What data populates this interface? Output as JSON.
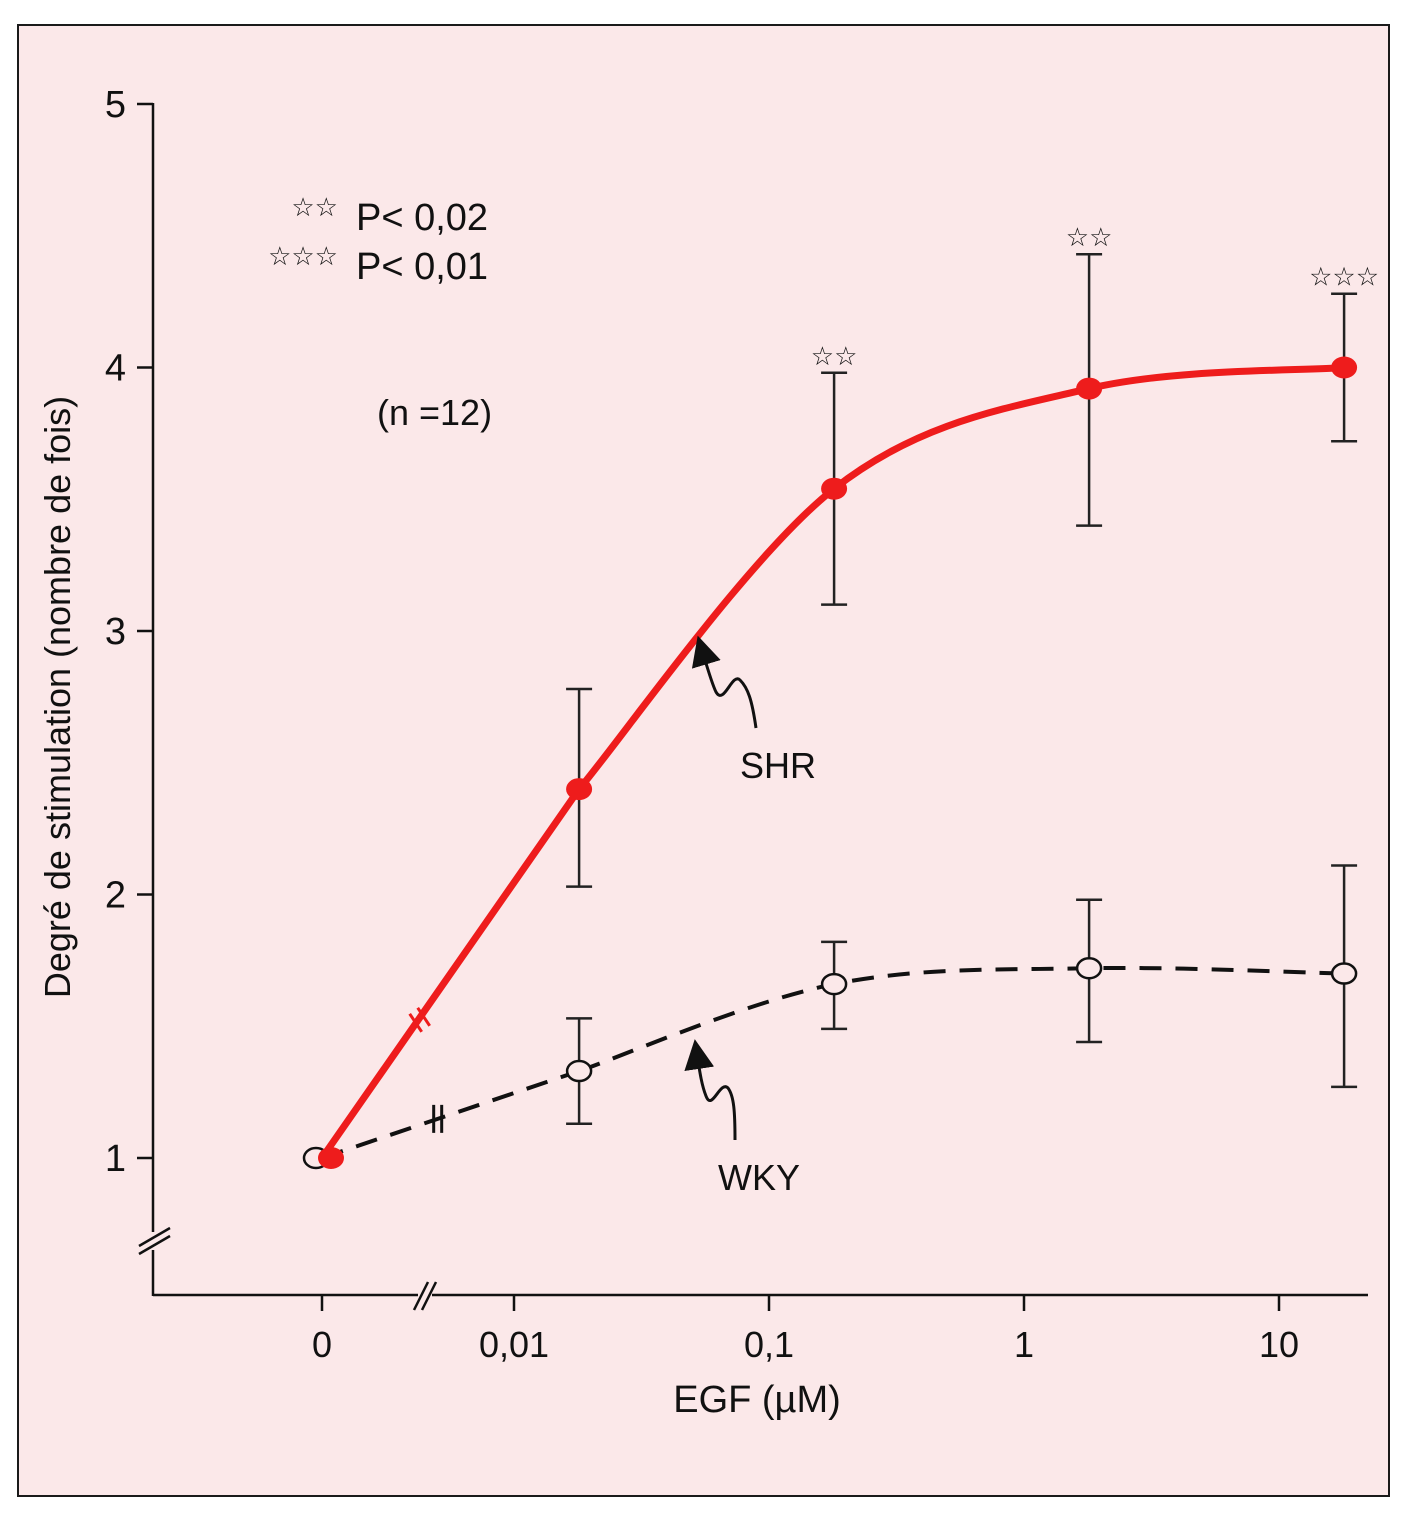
{
  "chart_data": {
    "type": "line",
    "title": "",
    "xlabel": "EGF (µM)",
    "ylabel": "Degré de stimulation (nombre de fois)",
    "x_scale": "log with broken axis (0 shown separately)",
    "x_ticks": [
      {
        "value": 0,
        "label": "0"
      },
      {
        "value": 0.01,
        "label": "0,01"
      },
      {
        "value": 0.1,
        "label": "0,1"
      },
      {
        "value": 1,
        "label": "1"
      },
      {
        "value": 10,
        "label": "10"
      }
    ],
    "y_ticks": [
      {
        "value": 1,
        "label": "1"
      },
      {
        "value": 2,
        "label": "2"
      },
      {
        "value": 3,
        "label": "3"
      },
      {
        "value": 4,
        "label": "4"
      },
      {
        "value": 5,
        "label": "5"
      }
    ],
    "ylim": [
      0.5,
      5
    ],
    "grid": false,
    "x": [
      0,
      0.018,
      0.18,
      1.8,
      18
    ],
    "series": [
      {
        "name": "SHR",
        "label": "SHR",
        "style": "solid",
        "marker": "filled-circle",
        "color": "#ee1c1c",
        "values": [
          1.0,
          2.4,
          3.54,
          3.92,
          4.0
        ],
        "err_high": [
          null,
          2.78,
          3.98,
          4.43,
          4.28
        ],
        "err_low": [
          null,
          2.03,
          3.1,
          3.4,
          3.72
        ],
        "significance": [
          "",
          "",
          "☆☆",
          "☆☆",
          "☆☆☆"
        ]
      },
      {
        "name": "WKY",
        "label": "WKY",
        "style": "dashed",
        "marker": "open-circle",
        "color": "#111111",
        "values": [
          1.0,
          1.33,
          1.66,
          1.72,
          1.7
        ],
        "err_high": [
          null,
          1.53,
          1.82,
          1.98,
          2.11
        ],
        "err_low": [
          null,
          1.13,
          1.49,
          1.44,
          1.27
        ],
        "significance": [
          "",
          "",
          "",
          "",
          ""
        ]
      }
    ],
    "legend": {
      "placement": "top-left",
      "entries": [
        {
          "symbol": "☆☆",
          "text": "P< 0,02"
        },
        {
          "symbol": "☆☆☆",
          "text": "P< 0,01"
        }
      ]
    },
    "annotations": [
      {
        "text": "(n =12)"
      }
    ]
  }
}
